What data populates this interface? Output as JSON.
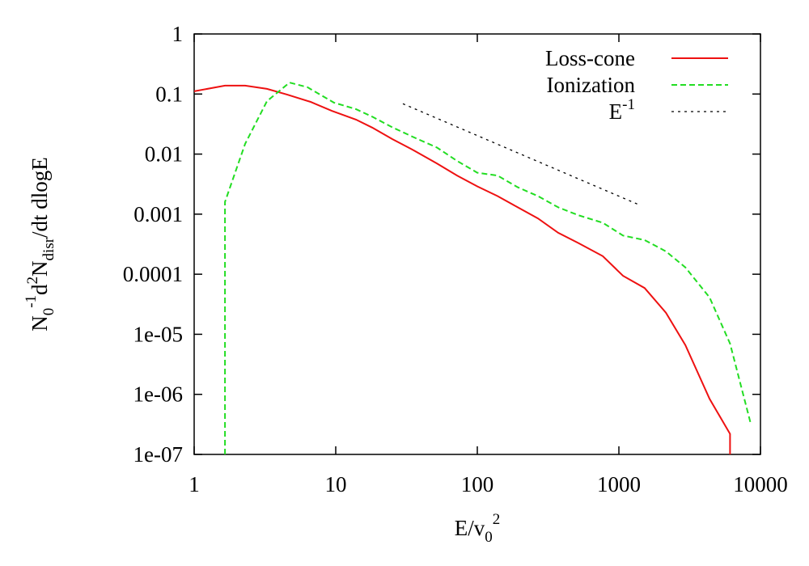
{
  "chart_data": {
    "type": "line",
    "x_label": [
      "E/v",
      "0",
      "2"
    ],
    "y_label": [
      "N",
      "0",
      "-1",
      "d",
      "2",
      "N",
      "disr",
      "/dt dlogE"
    ],
    "log_x": true,
    "log_y": true,
    "xlim": [
      1,
      10000
    ],
    "xticks": [
      1,
      10,
      100,
      1000,
      10000
    ],
    "ylim": [
      1e-07,
      1
    ],
    "yticks": [
      1,
      0.1,
      0.01,
      0.001,
      0.0001,
      {
        "value": 1e-05,
        "label": "1e-05"
      },
      {
        "value": 1e-06,
        "label": "1e-06"
      },
      {
        "value": 1e-07,
        "label": "1e-07"
      }
    ],
    "legend": "top-right",
    "series": [
      {
        "name": "Loss-cone",
        "color": "#ee1111",
        "dash": "solid",
        "x": [
          1,
          1.65,
          2.29,
          3.27,
          4.53,
          6.64,
          9.37,
          13.9,
          18.1,
          25.1,
          35.7,
          51.8,
          72,
          100,
          139,
          193,
          268,
          373,
          518,
          770,
          1070,
          1520,
          2150,
          2950,
          4370,
          6100,
          6100
        ],
        "values": [
          0.111,
          0.138,
          0.138,
          0.122,
          0.098,
          0.074,
          0.0525,
          0.0375,
          0.0276,
          0.0178,
          0.0115,
          0.007,
          0.0044,
          0.0029,
          0.002,
          0.0013,
          0.00085,
          0.00049,
          0.00033,
          0.0002,
          9.4e-05,
          5.9e-05,
          2.28e-05,
          6.6e-06,
          8.4e-07,
          2.2e-07,
          1e-07
        ]
      },
      {
        "name": "Ionization",
        "color": "#22dd22",
        "dash": "dashed",
        "x": [
          1.65,
          1.65,
          2.29,
          3.27,
          4.72,
          6.3,
          9.7,
          13.9,
          18.1,
          25.1,
          35.7,
          51.8,
          72,
          100,
          139,
          193,
          268,
          373,
          518,
          770,
          1070,
          1520,
          2150,
          2950,
          4370,
          6100,
          8500
        ],
        "values": [
          1e-07,
          0.0016,
          0.0148,
          0.076,
          0.155,
          0.13,
          0.072,
          0.056,
          0.042,
          0.028,
          0.019,
          0.0129,
          0.0077,
          0.0049,
          0.0044,
          0.0028,
          0.002,
          0.0013,
          0.00096,
          0.00072,
          0.00044,
          0.00037,
          0.00024,
          0.00013,
          4.1e-05,
          7e-06,
          3.4e-07
        ]
      },
      {
        "name": "E",
        "name_superscript": "-1",
        "color": "#000000",
        "dash": "dotted",
        "x": [
          29.8,
          1390
        ],
        "values": [
          0.069,
          0.00143
        ]
      }
    ]
  }
}
